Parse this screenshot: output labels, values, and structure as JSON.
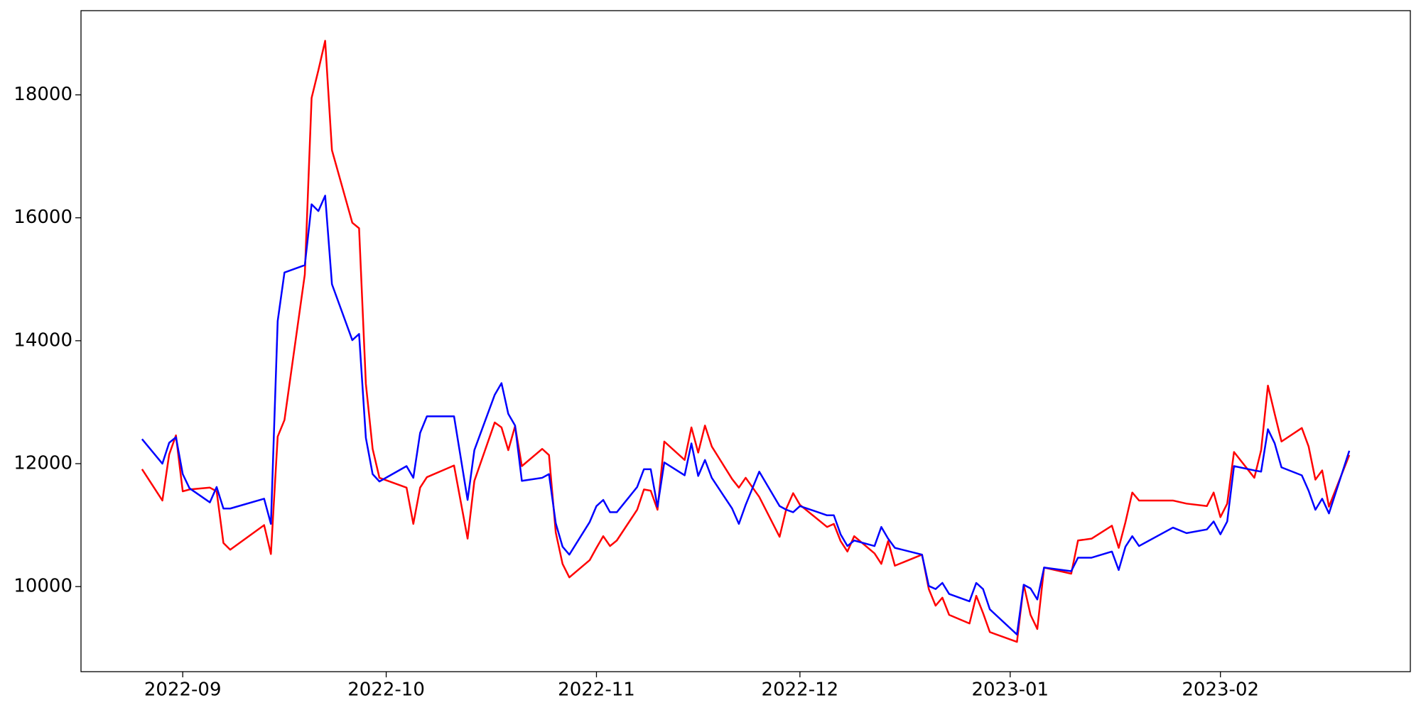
{
  "chart_data": {
    "type": "line",
    "x": [
      "2022-08-26",
      "2022-08-29",
      "2022-08-30",
      "2022-08-31",
      "2022-09-01",
      "2022-09-02",
      "2022-09-05",
      "2022-09-06",
      "2022-09-07",
      "2022-09-08",
      "2022-09-13",
      "2022-09-14",
      "2022-09-15",
      "2022-09-16",
      "2022-09-19",
      "2022-09-20",
      "2022-09-21",
      "2022-09-22",
      "2022-09-23",
      "2022-09-26",
      "2022-09-27",
      "2022-09-28",
      "2022-09-29",
      "2022-09-30",
      "2022-10-04",
      "2022-10-05",
      "2022-10-06",
      "2022-10-07",
      "2022-10-11",
      "2022-10-13",
      "2022-10-14",
      "2022-10-17",
      "2022-10-18",
      "2022-10-19",
      "2022-10-20",
      "2022-10-21",
      "2022-10-24",
      "2022-10-25",
      "2022-10-26",
      "2022-10-27",
      "2022-10-28",
      "2022-10-31",
      "2022-11-01",
      "2022-11-02",
      "2022-11-03",
      "2022-11-04",
      "2022-11-07",
      "2022-11-08",
      "2022-11-09",
      "2022-11-10",
      "2022-11-11",
      "2022-11-14",
      "2022-11-15",
      "2022-11-16",
      "2022-11-17",
      "2022-11-18",
      "2022-11-21",
      "2022-11-22",
      "2022-11-23",
      "2022-11-25",
      "2022-11-28",
      "2022-11-29",
      "2022-11-30",
      "2022-12-01",
      "2022-12-05",
      "2022-12-06",
      "2022-12-07",
      "2022-12-08",
      "2022-12-09",
      "2022-12-12",
      "2022-12-13",
      "2022-12-14",
      "2022-12-15",
      "2022-12-19",
      "2022-12-20",
      "2022-12-21",
      "2022-12-22",
      "2022-12-23",
      "2022-12-26",
      "2022-12-27",
      "2022-12-28",
      "2022-12-29",
      "2023-01-02",
      "2023-01-03",
      "2023-01-04",
      "2023-01-05",
      "2023-01-06",
      "2023-01-10",
      "2023-01-11",
      "2023-01-13",
      "2023-01-16",
      "2023-01-17",
      "2023-01-18",
      "2023-01-19",
      "2023-01-20",
      "2023-01-25",
      "2023-01-27",
      "2023-01-30",
      "2023-01-31",
      "2023-02-01",
      "2023-02-02",
      "2023-02-03",
      "2023-02-06",
      "2023-02-07",
      "2023-02-08",
      "2023-02-09",
      "2023-02-10",
      "2023-02-13",
      "2023-02-14",
      "2023-02-15",
      "2023-02-16",
      "2023-02-17",
      "2023-02-20"
    ],
    "series": [
      {
        "color": "red",
        "values": [
          11910,
          11400,
          12150,
          12460,
          11550,
          11580,
          11610,
          11550,
          10710,
          10600,
          11000,
          10530,
          12440,
          12710,
          15080,
          17950,
          18400,
          18880,
          17100,
          15920,
          15830,
          13300,
          12240,
          11770,
          11610,
          11020,
          11610,
          11780,
          11970,
          10780,
          11720,
          12670,
          12590,
          12220,
          12610,
          11960,
          12240,
          12140,
          10880,
          10370,
          10150,
          10430,
          10630,
          10820,
          10660,
          10750,
          11250,
          11580,
          11560,
          11250,
          12360,
          12060,
          12590,
          12180,
          12620,
          12280,
          11750,
          11610,
          11770,
          11460,
          10810,
          11270,
          11520,
          11330,
          10970,
          11020,
          10740,
          10570,
          10820,
          10540,
          10370,
          10740,
          10340,
          10520,
          9960,
          9690,
          9820,
          9540,
          9400,
          9850,
          9570,
          9260,
          9100,
          10030,
          9540,
          9310,
          10310,
          10210,
          10750,
          10780,
          10990,
          10630,
          11050,
          11530,
          11400,
          11400,
          11350,
          11310,
          11530,
          11130,
          11350,
          12190,
          11770,
          12220,
          13270,
          12810,
          12360,
          12580,
          12280,
          11740,
          11890,
          11300,
          12140
        ]
      },
      {
        "color": "blue",
        "values": [
          12400,
          12000,
          12340,
          12430,
          11830,
          11600,
          11370,
          11620,
          11270,
          11270,
          11430,
          11020,
          14320,
          15110,
          15230,
          16220,
          16110,
          16360,
          14920,
          14010,
          14110,
          12420,
          11830,
          11710,
          11960,
          11770,
          12500,
          12770,
          12770,
          11410,
          12220,
          13120,
          13310,
          12810,
          12620,
          11720,
          11770,
          11830,
          11030,
          10650,
          10520,
          11050,
          11310,
          11410,
          11210,
          11210,
          11620,
          11910,
          11910,
          11300,
          12020,
          11810,
          12330,
          11800,
          12060,
          11770,
          11270,
          11020,
          11330,
          11870,
          11310,
          11250,
          11210,
          11310,
          11160,
          11160,
          10850,
          10660,
          10750,
          10660,
          10970,
          10780,
          10630,
          10520,
          10010,
          9960,
          10060,
          9880,
          9760,
          10060,
          9960,
          9630,
          9220,
          10030,
          9970,
          9790,
          10310,
          10250,
          10470,
          10470,
          10570,
          10270,
          10650,
          10820,
          10660,
          10960,
          10870,
          10930,
          11060,
          10850,
          11060,
          11960,
          11890,
          11870,
          12560,
          12330,
          11940,
          11810,
          11560,
          11250,
          11430,
          11190,
          12210
        ]
      }
    ],
    "xlim": [
      "2022-08-17",
      "2023-03-01"
    ],
    "xticks": [
      {
        "value": "2022-09-01",
        "label": "2022-09"
      },
      {
        "value": "2022-10-01",
        "label": "2022-10"
      },
      {
        "value": "2022-11-01",
        "label": "2022-11"
      },
      {
        "value": "2022-12-01",
        "label": "2022-12"
      },
      {
        "value": "2023-01-01",
        "label": "2023-01"
      },
      {
        "value": "2023-02-01",
        "label": "2023-02"
      }
    ],
    "ylim": [
      8616,
      19370
    ],
    "yticks": [
      10000,
      12000,
      14000,
      16000,
      18000
    ],
    "grid": false
  }
}
